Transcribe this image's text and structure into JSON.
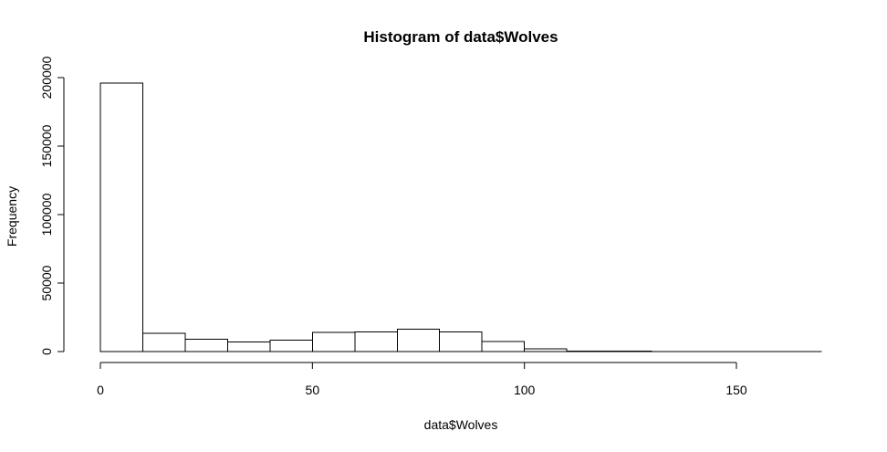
{
  "chart_data": {
    "type": "bar",
    "title": "Histogram of data$Wolves",
    "xlabel": "data$Wolves",
    "ylabel": "Frequency",
    "bin_edges": [
      0,
      10,
      20,
      30,
      40,
      50,
      60,
      70,
      80,
      90,
      100,
      110,
      120,
      130,
      140,
      150,
      160,
      170
    ],
    "values": [
      196000,
      13500,
      9000,
      7000,
      8500,
      14000,
      14500,
      16500,
      14500,
      7500,
      2000,
      500,
      200,
      100,
      50,
      30,
      20
    ],
    "xlim": [
      0,
      170
    ],
    "ylim": [
      0,
      200000
    ],
    "x_ticks": [
      0,
      50,
      100,
      150
    ],
    "y_ticks": [
      0,
      50000,
      100000,
      150000,
      200000
    ],
    "grid": false
  }
}
